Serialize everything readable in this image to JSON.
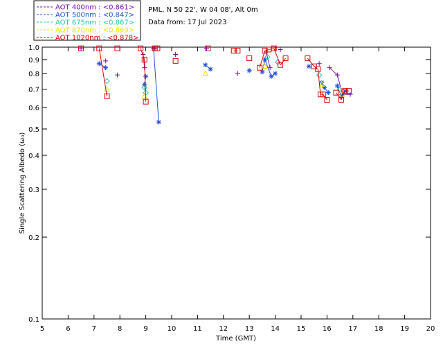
{
  "chart_data": {
    "type": "scatter",
    "xlabel": "Time (GMT)",
    "ylabel": "Single Scattering Albedo (ω₀)",
    "xlim": [
      5,
      20
    ],
    "ylim": [
      0.1,
      1.0
    ],
    "y_scale": "log",
    "x_ticks": [
      "5",
      "6",
      "7",
      "8",
      "9",
      "10",
      "11",
      "12",
      "13",
      "14",
      "15",
      "16",
      "17",
      "18",
      "19",
      "20"
    ],
    "y_ticks": [
      "0.1",
      "0.2",
      "0.3",
      "0.4",
      "0.5",
      "0.6",
      "0.7",
      "0.8",
      "0.9",
      "1.0"
    ],
    "info_lines": [
      "PML, N 50 22', W 04 08', Alt 0m",
      "Data from: 17 Jul 2023"
    ],
    "legend_position": "top-left-outside",
    "series": [
      {
        "name": "AOT  400nm : <0.861>",
        "color": "#7b0fa8",
        "marker": "plus",
        "x": [
          6.5,
          7.45,
          7.9,
          8.9,
          8.95,
          9.35,
          10.15,
          11.35,
          12.55,
          13.65,
          13.8,
          14.2,
          15.7,
          16.1,
          16.4,
          16.6,
          16.9
        ],
        "y": [
          0.99,
          0.89,
          0.79,
          0.94,
          0.84,
          0.99,
          0.94,
          0.99,
          0.8,
          0.96,
          0.84,
          0.98,
          0.87,
          0.84,
          0.79,
          0.67,
          0.67
        ]
      },
      {
        "name": "AOT  500nm : <0.847>",
        "color": "#1e50d8",
        "marker": "star",
        "x": [
          7.2,
          7.45,
          8.95,
          9.0,
          9.3,
          9.5,
          11.3,
          11.5,
          13.0,
          13.5,
          13.6,
          13.85,
          14.0,
          15.3,
          15.8,
          15.9,
          16.05,
          16.4,
          16.55,
          16.7
        ],
        "y": [
          0.87,
          0.84,
          0.73,
          0.78,
          0.99,
          0.53,
          0.86,
          0.83,
          0.82,
          0.81,
          0.9,
          0.78,
          0.8,
          0.85,
          0.74,
          0.71,
          0.68,
          0.72,
          0.66,
          0.69
        ]
      },
      {
        "name": "AOT  675nm : <0.867>",
        "color": "#17c8a8",
        "marker": "diamond",
        "x": [
          7.5,
          8.95,
          9.0,
          13.7,
          14.1,
          15.7,
          16.5
        ],
        "y": [
          0.75,
          0.71,
          0.68,
          0.92,
          0.88,
          0.79,
          0.7
        ]
      },
      {
        "name": "AOT  870nm : <0.869>",
        "color": "#e6e600",
        "marker": "triangle",
        "x": [
          7.5,
          8.95,
          11.3,
          13.6,
          15.8,
          16.6
        ],
        "y": [
          0.7,
          0.66,
          0.8,
          0.85,
          0.73,
          0.67
        ]
      },
      {
        "name": "AOT 1020nm : <0.878>",
        "color": "#e00000",
        "marker": "square",
        "x": [
          6.5,
          7.2,
          7.5,
          7.9,
          8.8,
          8.95,
          9.0,
          9.35,
          9.45,
          10.15,
          11.4,
          12.4,
          12.55,
          13.0,
          13.4,
          13.6,
          13.75,
          13.95,
          14.2,
          14.4,
          15.25,
          15.5,
          15.65,
          15.75,
          15.85,
          16.0,
          16.35,
          16.55,
          16.7,
          16.85
        ],
        "y": [
          0.99,
          0.99,
          0.66,
          0.99,
          0.99,
          0.9,
          0.63,
          0.99,
          0.99,
          0.89,
          0.99,
          0.97,
          0.97,
          0.91,
          0.84,
          0.97,
          0.98,
          0.99,
          0.86,
          0.91,
          0.91,
          0.85,
          0.83,
          0.67,
          0.67,
          0.64,
          0.68,
          0.64,
          0.69,
          0.69
        ]
      }
    ]
  }
}
